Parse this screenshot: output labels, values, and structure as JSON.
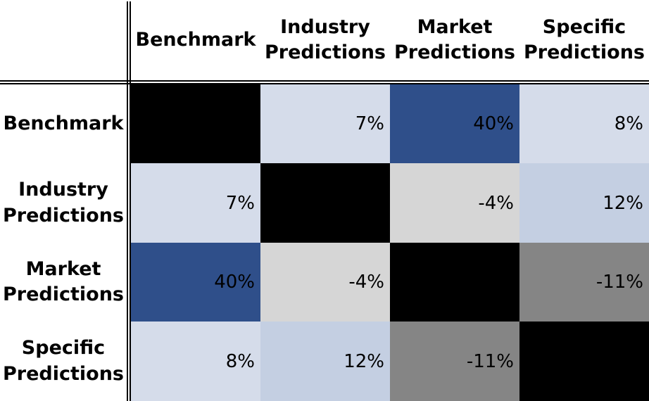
{
  "chart_data": {
    "type": "heatmap",
    "title": "",
    "columns": [
      "Benchmark",
      "Industry\nPredictions",
      "Market\nPredictions",
      "Specific\nPredictions"
    ],
    "rows": [
      "Benchmark",
      "Industry\nPredictions",
      "Market\nPredictions",
      "Specific\nPredictions"
    ],
    "values": [
      [
        null,
        7,
        40,
        8
      ],
      [
        7,
        null,
        -4,
        12
      ],
      [
        40,
        -4,
        null,
        -11
      ],
      [
        8,
        12,
        -11,
        null
      ]
    ],
    "labels": [
      [
        "",
        "7%",
        "40%",
        "8%"
      ],
      [
        "7%",
        "",
        "-4%",
        "12%"
      ],
      [
        "40%",
        "-4%",
        "",
        "-11%"
      ],
      [
        "8%",
        "12%",
        "-11%",
        ""
      ]
    ],
    "value_unit": "%",
    "colors": {
      "diagonal": "#000000",
      "high": "#2f4f8a",
      "low_positive": "#d5dcea",
      "mid_positive": "#c4cfe2",
      "small_negative": "#d6d6d6",
      "large_negative": "#858585"
    }
  }
}
